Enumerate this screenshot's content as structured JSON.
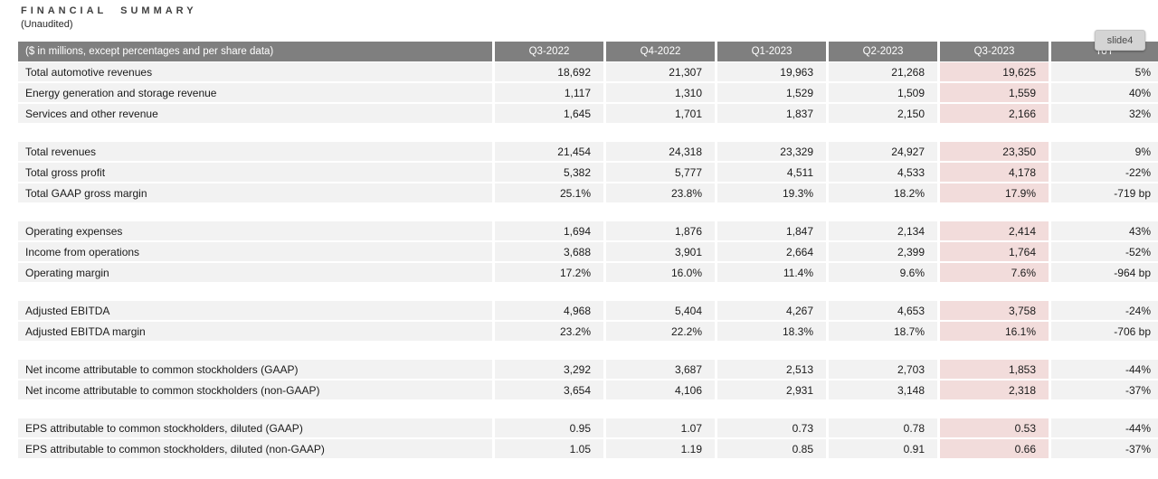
{
  "header": {
    "title": "FINANCIAL SUMMARY",
    "subtitle": "(Unaudited)"
  },
  "badge": {
    "label": "slide4"
  },
  "colors": {
    "table_header_bg": "#7f7f7f",
    "table_header_text": "#ffffff",
    "row_bg": "#f2f2f2",
    "highlight_column_bg": "#f2dcdb",
    "badge_bg": "#d4d4d4"
  },
  "table": {
    "columns": [
      "($ in millions, except percentages and per share data)",
      "Q3-2022",
      "Q4-2022",
      "Q1-2023",
      "Q2-2023",
      "Q3-2023",
      "YoY"
    ],
    "highlighted_column": "Q3-2023",
    "groups": [
      {
        "rows": [
          {
            "label": "Total automotive revenues",
            "values": [
              "18,692",
              "21,307",
              "19,963",
              "21,268",
              "19,625",
              "5%"
            ]
          },
          {
            "label": "Energy generation and storage revenue",
            "values": [
              "1,117",
              "1,310",
              "1,529",
              "1,509",
              "1,559",
              "40%"
            ]
          },
          {
            "label": "Services and other revenue",
            "values": [
              "1,645",
              "1,701",
              "1,837",
              "2,150",
              "2,166",
              "32%"
            ]
          }
        ]
      },
      {
        "rows": [
          {
            "label": "Total revenues",
            "values": [
              "21,454",
              "24,318",
              "23,329",
              "24,927",
              "23,350",
              "9%"
            ]
          },
          {
            "label": "Total gross profit",
            "values": [
              "5,382",
              "5,777",
              "4,511",
              "4,533",
              "4,178",
              "-22%"
            ]
          },
          {
            "label": "Total GAAP gross margin",
            "values": [
              "25.1%",
              "23.8%",
              "19.3%",
              "18.2%",
              "17.9%",
              "-719 bp"
            ]
          }
        ]
      },
      {
        "rows": [
          {
            "label": "Operating expenses",
            "values": [
              "1,694",
              "1,876",
              "1,847",
              "2,134",
              "2,414",
              "43%"
            ]
          },
          {
            "label": "Income from operations",
            "values": [
              "3,688",
              "3,901",
              "2,664",
              "2,399",
              "1,764",
              "-52%"
            ]
          },
          {
            "label": "Operating margin",
            "values": [
              "17.2%",
              "16.0%",
              "11.4%",
              "9.6%",
              "7.6%",
              "-964 bp"
            ]
          }
        ]
      },
      {
        "rows": [
          {
            "label": "Adjusted EBITDA",
            "values": [
              "4,968",
              "5,404",
              "4,267",
              "4,653",
              "3,758",
              "-24%"
            ]
          },
          {
            "label": "Adjusted EBITDA margin",
            "values": [
              "23.2%",
              "22.2%",
              "18.3%",
              "18.7%",
              "16.1%",
              "-706 bp"
            ]
          }
        ]
      },
      {
        "rows": [
          {
            "label": "Net income attributable to common stockholders (GAAP)",
            "values": [
              "3,292",
              "3,687",
              "2,513",
              "2,703",
              "1,853",
              "-44%"
            ]
          },
          {
            "label": "Net income attributable to common stockholders (non-GAAP)",
            "values": [
              "3,654",
              "4,106",
              "2,931",
              "3,148",
              "2,318",
              "-37%"
            ]
          }
        ]
      },
      {
        "rows": [
          {
            "label": "EPS attributable to common stockholders, diluted (GAAP)",
            "values": [
              "0.95",
              "1.07",
              "0.73",
              "0.78",
              "0.53",
              "-44%"
            ]
          },
          {
            "label": "EPS attributable to common stockholders, diluted (non-GAAP)",
            "values": [
              "1.05",
              "1.19",
              "0.85",
              "0.91",
              "0.66",
              "-37%"
            ]
          }
        ]
      }
    ]
  }
}
